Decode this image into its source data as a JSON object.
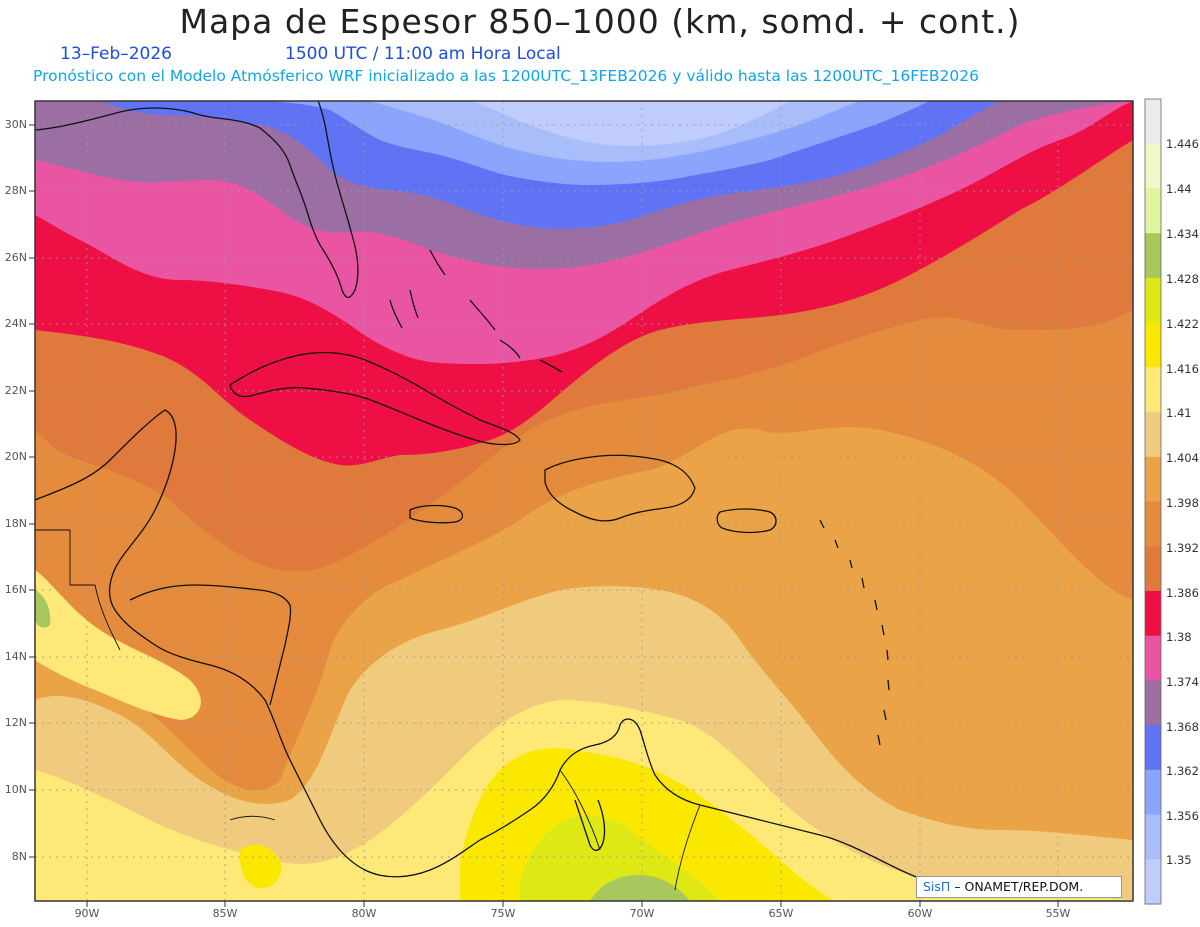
{
  "header": {
    "title": "Mapa de Espesor 850–1000 (km, somd. + cont.)",
    "date": "13–Feb–2026",
    "time": "1500 UTC / 11:00 am Hora Local",
    "forecast_line": "Pronóstico con el Modelo Atmósferico WRF inicializado a las 1200UTC_13FEB2026 y válido hasta las  1200UTC_16FEB2026"
  },
  "map": {
    "lat_labels": [
      "30N",
      "28N",
      "26N",
      "24N",
      "22N",
      "20N",
      "18N",
      "16N",
      "14N",
      "12N",
      "10N",
      "8N"
    ],
    "lon_labels": [
      "90W",
      "85W",
      "80W",
      "75W",
      "70W",
      "65W",
      "60W",
      "55W"
    ],
    "places": [
      "Florida",
      "Cuba",
      "Bahamas",
      "Hispaniola",
      "Puerto Rico",
      "Jamaica",
      "Lesser Antilles",
      "Central America",
      "South America"
    ]
  },
  "colorbar": {
    "labels": [
      "1.446",
      "1.44",
      "1.434",
      "1.428",
      "1.422",
      "1.416",
      "1.41",
      "1.404",
      "1.398",
      "1.392",
      "1.386",
      "1.38",
      "1.374",
      "1.368",
      "1.362",
      "1.356",
      "1.35"
    ],
    "colors": [
      "#ebebeb",
      "#f3f8c8",
      "#e1f4a0",
      "#a8c85e",
      "#dde814",
      "#fbe800",
      "#fde878",
      "#f1cb7d",
      "#eba347",
      "#e58b3e",
      "#df7a3c",
      "#ee0f44",
      "#e955a3",
      "#9c6fa4",
      "#6073f4",
      "#8aa5fb",
      "#aabdfb",
      "#c0cdfc"
    ]
  },
  "credit": {
    "brand": "SisΠ",
    "text": "– ONAMET/REP.DOM."
  }
}
